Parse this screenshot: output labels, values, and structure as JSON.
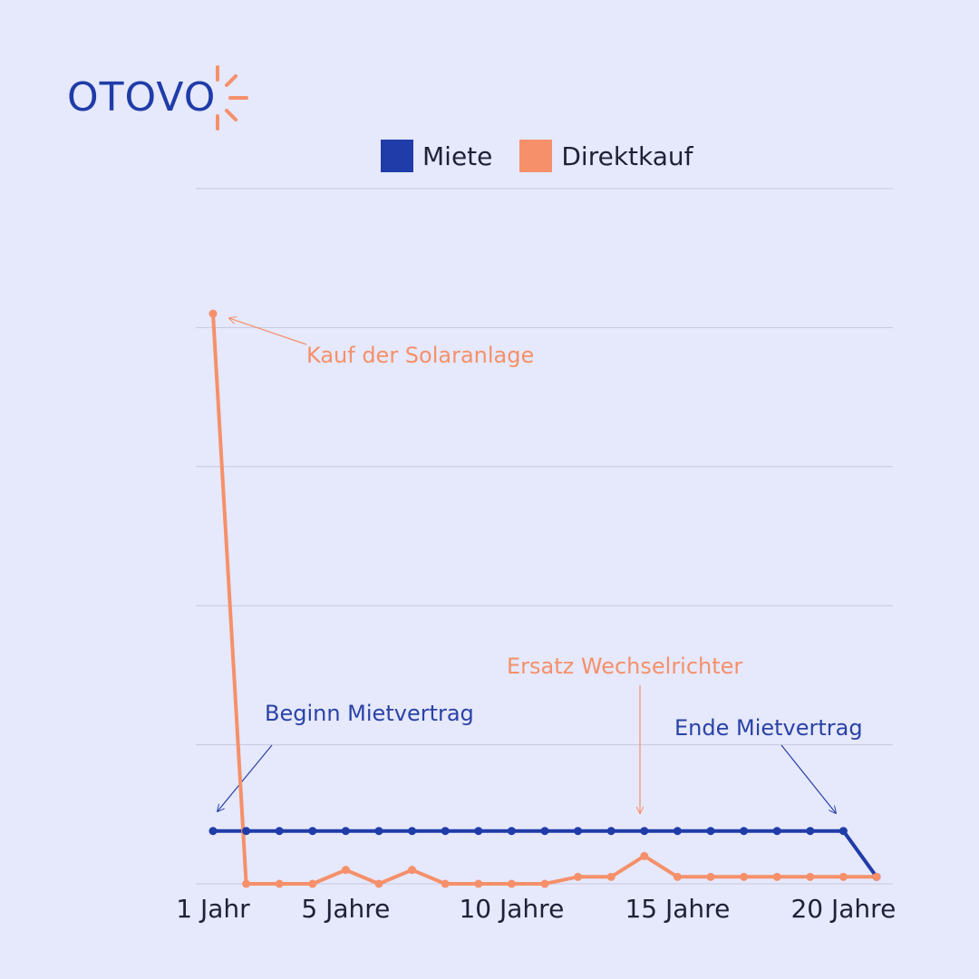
{
  "logo": {
    "text": "OTOVO",
    "icon": "sun-rays-icon"
  },
  "colors": {
    "miete": "#1f3ca8",
    "direktkauf": "#f5906a",
    "background": "#e6e8fb",
    "grid": "#c5c7e0"
  },
  "chart_data": {
    "type": "line",
    "title": "",
    "xlabel": "",
    "ylabel": "",
    "x": [
      1,
      2,
      3,
      4,
      5,
      6,
      7,
      8,
      9,
      10,
      11,
      12,
      13,
      14,
      15,
      16,
      17,
      18,
      19,
      20,
      21
    ],
    "x_ticks": [
      {
        "value": 1,
        "label": "1 Jahr"
      },
      {
        "value": 5,
        "label": "5 Jahre"
      },
      {
        "value": 10,
        "label": "10 Jahre"
      },
      {
        "value": 15,
        "label": "15 Jahre"
      },
      {
        "value": 20,
        "label": "20 Jahre"
      }
    ],
    "ylim": [
      0,
      5
    ],
    "gridlines": [
      0,
      1,
      2,
      3,
      4,
      5
    ],
    "legend": {
      "placement": "top-center"
    },
    "series": [
      {
        "name": "Miete",
        "color": "#1f3ca8",
        "values": [
          0.38,
          0.38,
          0.38,
          0.38,
          0.38,
          0.38,
          0.38,
          0.38,
          0.38,
          0.38,
          0.38,
          0.38,
          0.38,
          0.38,
          0.38,
          0.38,
          0.38,
          0.38,
          0.38,
          0.38,
          0.05
        ]
      },
      {
        "name": "Direktkauf",
        "color": "#f5906a",
        "values": [
          4.1,
          0.0,
          0.0,
          0.0,
          0.1,
          0.0,
          0.1,
          0.0,
          0.0,
          0.0,
          0.0,
          0.05,
          0.05,
          0.2,
          0.05,
          0.05,
          0.05,
          0.05,
          0.05,
          0.05,
          0.05
        ]
      }
    ],
    "annotations": [
      {
        "text": "Kauf der Solaranlage",
        "series": "Direktkauf",
        "x": 1,
        "color": "#f5906a"
      },
      {
        "text": "Ersatz Wechselrichter",
        "series": "Direktkauf",
        "x": 14,
        "color": "#f5906a"
      },
      {
        "text": "Beginn Mietvertrag",
        "series": "Miete",
        "x": 1,
        "color": "#2a43a6"
      },
      {
        "text": "Ende Mietvertrag",
        "series": "Miete",
        "x": 20,
        "color": "#2a43a6"
      }
    ]
  }
}
